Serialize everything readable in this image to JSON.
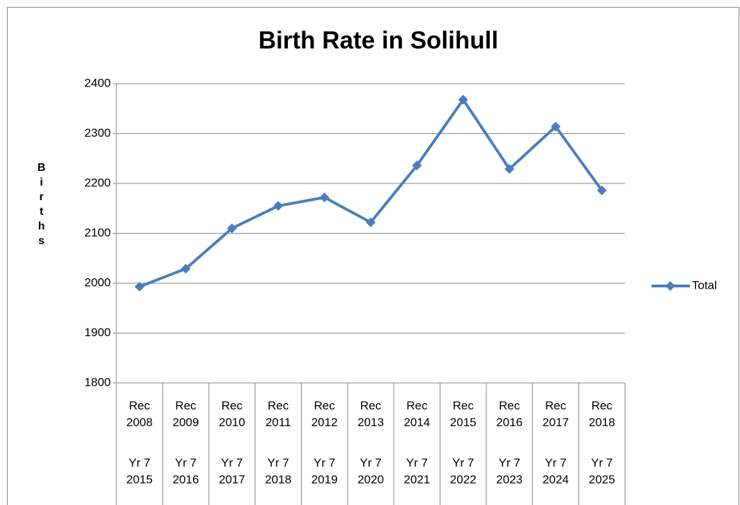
{
  "chart_data": {
    "type": "line",
    "title": "Birth Rate in Solihull",
    "y_label": "Births",
    "categories": [
      "Rec 2008",
      "Rec 2009",
      "Rec 2010",
      "Rec 2011",
      "Rec 2012",
      "Rec 2013",
      "Rec 2014",
      "Rec 2015",
      "Rec 2016",
      "Rec 2017",
      "Rec 2018"
    ],
    "categories_level2": [
      "Yr 7 2015",
      "Yr 7 2016",
      "Yr 7 2017",
      "Yr 7 2018",
      "Yr 7 2019",
      "Yr 7 2020",
      "Yr 7 2021",
      "Yr 7 2022",
      "Yr 7 2023",
      "Yr 7 2024",
      "Yr 7 2025"
    ],
    "series": [
      {
        "name": "Total",
        "color": "#4a7ebb",
        "values": [
          1993,
          2029,
          2110,
          2155,
          2172,
          2122,
          2236,
          2368,
          2229,
          2314,
          2186
        ]
      }
    ],
    "ylim": [
      1800,
      2400
    ],
    "yticks": [
      1800,
      1900,
      2000,
      2100,
      2200,
      2300,
      2400
    ],
    "grid": true,
    "legend": "right"
  }
}
